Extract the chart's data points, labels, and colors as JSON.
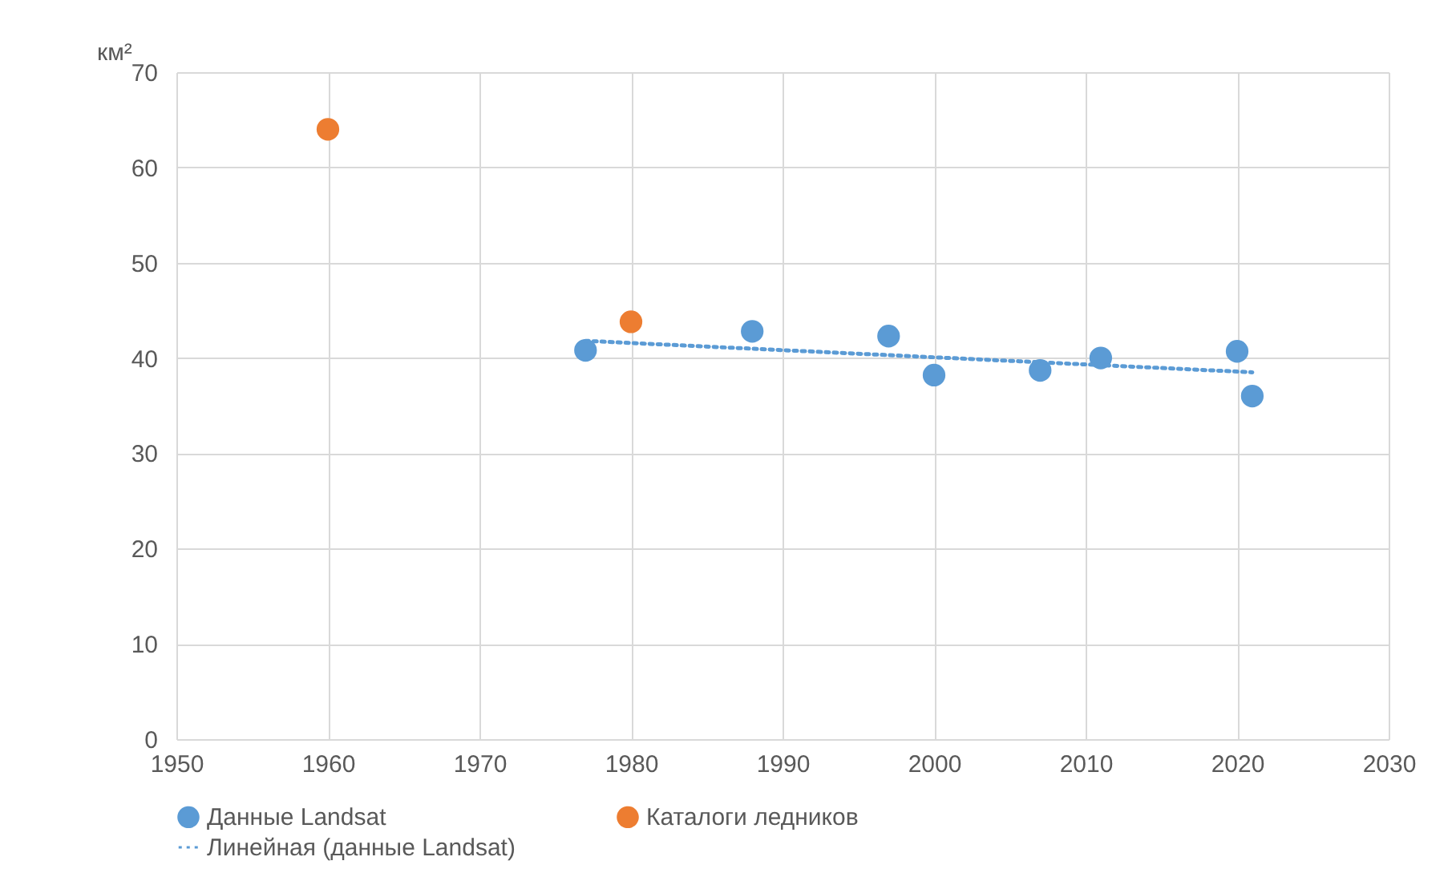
{
  "chart_data": {
    "type": "scatter",
    "ylabel": "км²",
    "xlim": [
      1950,
      2030
    ],
    "xticks": [
      1950,
      1960,
      1970,
      1980,
      1990,
      2000,
      2010,
      2020,
      2030
    ],
    "ylim": [
      0,
      70
    ],
    "yticks": [
      0,
      10,
      20,
      30,
      40,
      50,
      60,
      70
    ],
    "grid": true,
    "legend": "bottom",
    "marker": "circle",
    "series": [
      {
        "name": "Данные Landsat",
        "color": "#5b9bd5",
        "x": [
          1977,
          1988,
          1997,
          2000,
          2007,
          2011,
          2020,
          2021
        ],
        "values": [
          40.8,
          42.8,
          42.3,
          38.2,
          38.7,
          40.0,
          40.7,
          36.0
        ]
      },
      {
        "name": "Каталоги ледников",
        "color": "#ed7d31",
        "x": [
          1960,
          1980
        ],
        "values": [
          64.0,
          43.8
        ]
      },
      {
        "name": "Линейная (данные Landsat)",
        "type": "line",
        "marker": "none",
        "line_style": "dotted",
        "color": "#5b9bd5",
        "x": [
          1977,
          2021
        ],
        "values": [
          41.8,
          38.5
        ]
      }
    ]
  }
}
